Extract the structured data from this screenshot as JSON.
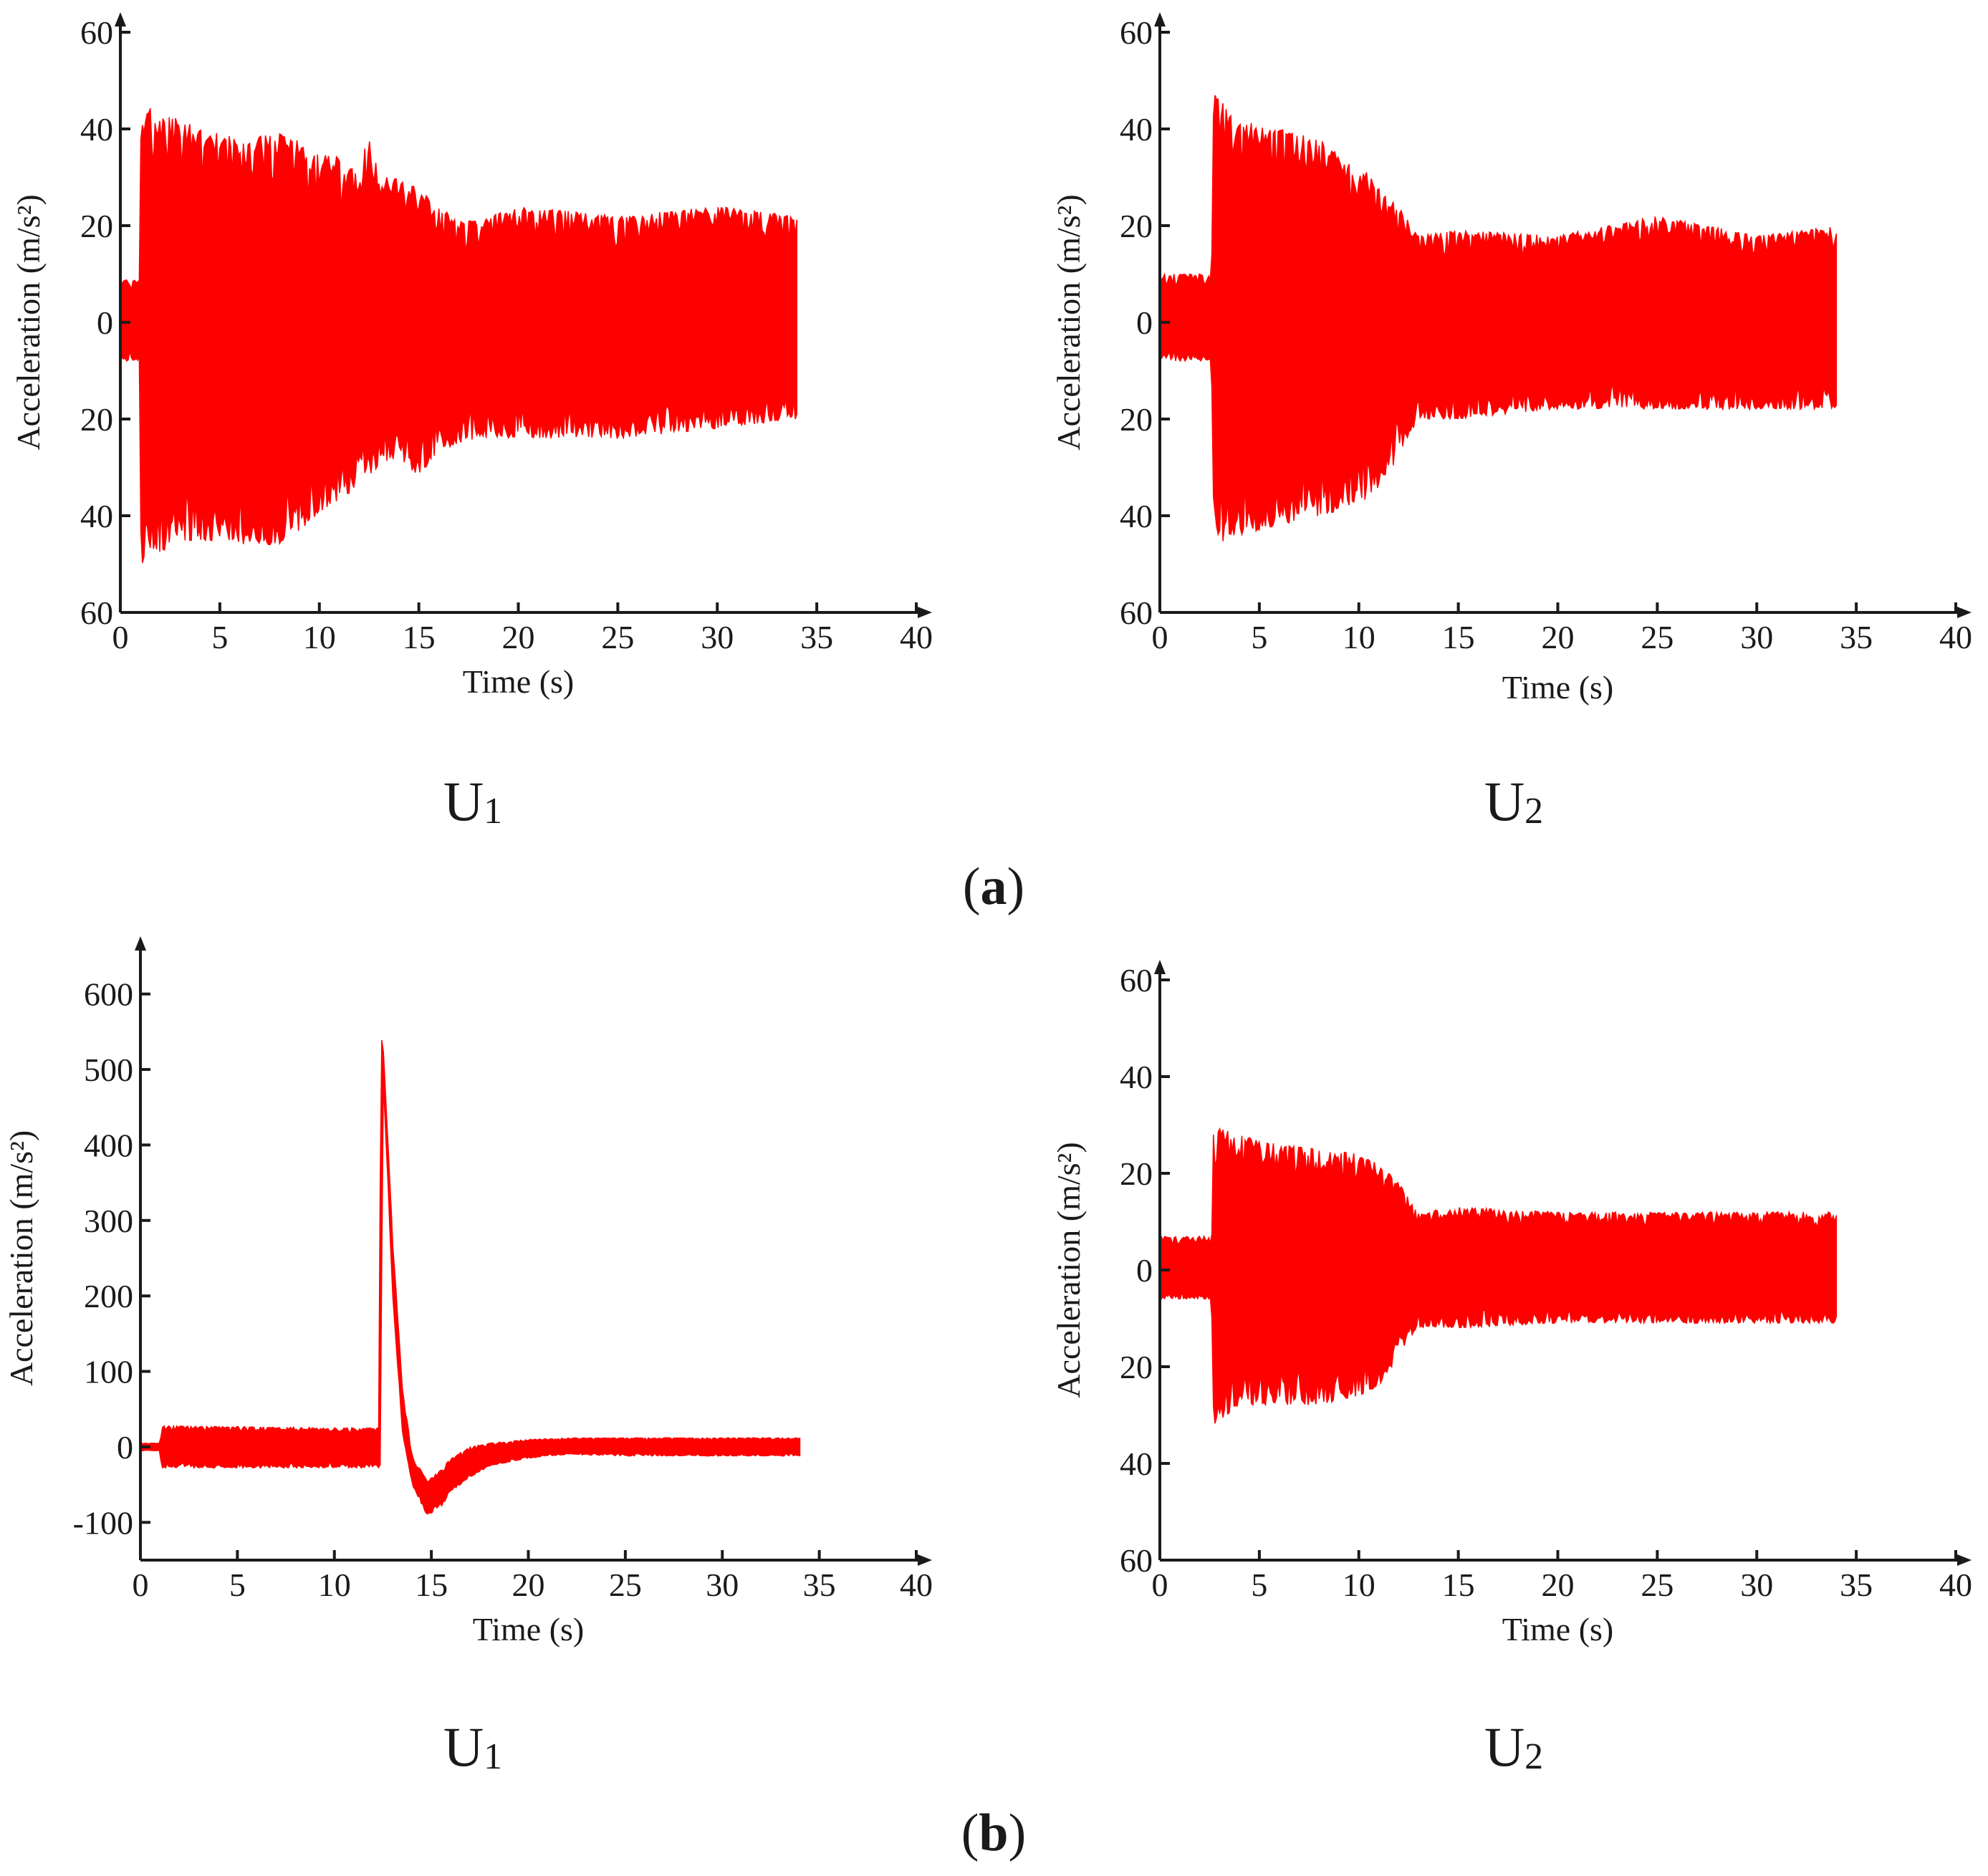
{
  "figure": {
    "labels": [
      {
        "open": "(",
        "letter": "a",
        "close": ")"
      },
      {
        "open": "(",
        "letter": "b",
        "close": ")"
      }
    ],
    "colors": {
      "signal": "#ff0000",
      "axis": "#1a1a1a",
      "background": "#ffffff"
    }
  },
  "chart_data": [
    {
      "id": "a-U1",
      "group": "a",
      "type": "line",
      "title_main": "U",
      "title_sub": "1",
      "xlabel": "Time (s)",
      "ylabel": "Acceleration (m/s²)",
      "xlim": [
        0,
        40
      ],
      "ylim": [
        -60,
        60
      ],
      "x_ticks": [
        0,
        5,
        10,
        15,
        20,
        25,
        30,
        35,
        40
      ],
      "y_ticks": [
        60,
        40,
        20,
        0,
        -20,
        -40,
        -60
      ],
      "y_tick_labels": [
        "60",
        "40",
        "20",
        "0",
        "20",
        "40",
        "60"
      ],
      "series": [
        {
          "name": "acceleration",
          "color": "#ff0000",
          "signal_start": 0,
          "signal_end": 34,
          "envelope_time": [
            0,
            0.99,
            1.0,
            2,
            4,
            6,
            8,
            10,
            12,
            12.5,
            13,
            14,
            15,
            16,
            17,
            18,
            20,
            25,
            30,
            34
          ],
          "envelope_upper": [
            9,
            9,
            45,
            44,
            40,
            38,
            39,
            36,
            32,
            40,
            30,
            30,
            28,
            24,
            21,
            21,
            24,
            22,
            24,
            22
          ],
          "envelope_lower": [
            -8,
            -8,
            -50,
            -48,
            -45,
            -46,
            -46,
            -40,
            -34,
            -32,
            -30,
            -28,
            -32,
            -27,
            -25,
            -24,
            -24,
            -24,
            -22,
            -20
          ]
        }
      ]
    },
    {
      "id": "a-U2",
      "group": "a",
      "type": "line",
      "title_main": "U",
      "title_sub": "2",
      "xlabel": "Time (s)",
      "ylabel": "Acceleration (m/s²)",
      "xlim": [
        0,
        40
      ],
      "ylim": [
        -60,
        60
      ],
      "x_ticks": [
        0,
        5,
        10,
        15,
        20,
        25,
        30,
        35,
        40
      ],
      "y_ticks": [
        60,
        40,
        20,
        0,
        -20,
        -40,
        -60
      ],
      "y_tick_labels": [
        "60",
        "40",
        "20",
        "0",
        "20",
        "40",
        "60"
      ],
      "series": [
        {
          "name": "acceleration",
          "color": "#ff0000",
          "signal_start": 0,
          "signal_end": 34,
          "envelope_time": [
            0,
            2.6,
            2.7,
            4,
            6,
            8,
            10,
            11,
            12,
            13,
            15,
            20,
            25,
            30,
            34
          ],
          "envelope_upper": [
            10,
            10,
            48,
            42,
            40,
            38,
            32,
            30,
            24,
            18,
            19,
            18,
            22,
            18,
            20
          ],
          "envelope_lower": [
            -8,
            -8,
            -46,
            -44,
            -42,
            -40,
            -38,
            -34,
            -28,
            -20,
            -20,
            -18,
            -18,
            -18,
            -18
          ]
        }
      ]
    },
    {
      "id": "b-U1",
      "group": "b",
      "type": "line",
      "title_main": "U",
      "title_sub": "1",
      "xlabel": "Time (s)",
      "ylabel": "Acceleration (m/s²)",
      "xlim": [
        0,
        40
      ],
      "ylim": [
        -150,
        650
      ],
      "x_ticks": [
        0,
        5,
        10,
        15,
        20,
        25,
        30,
        35,
        40
      ],
      "y_ticks": [
        600,
        500,
        400,
        300,
        200,
        100,
        0,
        -100
      ],
      "y_tick_labels": [
        "600",
        "500",
        "400",
        "300",
        "200",
        "100",
        "0",
        "-100"
      ],
      "series": [
        {
          "name": "acceleration",
          "color": "#ff0000",
          "signal_start": 0,
          "signal_end": 34,
          "envelope_time": [
            0,
            1.0,
            1.1,
            12.3,
            12.4,
            12.5,
            13,
            13.5,
            14,
            14.8,
            15.5,
            16,
            17,
            18,
            20,
            22,
            25,
            30,
            34
          ],
          "envelope_upper": [
            5,
            5,
            28,
            25,
            560,
            540,
            280,
            80,
            -10,
            -45,
            -30,
            -15,
            0,
            5,
            10,
            12,
            12,
            12,
            12
          ],
          "envelope_lower": [
            -5,
            -5,
            -28,
            -28,
            -28,
            500,
            200,
            20,
            -50,
            -92,
            -80,
            -60,
            -40,
            -25,
            -15,
            -10,
            -12,
            -12,
            -12
          ]
        }
      ]
    },
    {
      "id": "b-U2",
      "group": "b",
      "type": "line",
      "title_main": "U",
      "title_sub": "2",
      "xlabel": "Time (s)",
      "ylabel": "Acceleration (m/s²)",
      "xlim": [
        0,
        40
      ],
      "ylim": [
        -60,
        60
      ],
      "x_ticks": [
        0,
        5,
        10,
        15,
        20,
        25,
        30,
        35,
        40
      ],
      "y_ticks": [
        60,
        40,
        20,
        0,
        -20,
        -40,
        -60
      ],
      "y_tick_labels": [
        "60",
        "40",
        "20",
        "0",
        "20",
        "40",
        "60"
      ],
      "series": [
        {
          "name": "acceleration",
          "color": "#ff0000",
          "signal_start": 0,
          "signal_end": 34,
          "envelope_time": [
            0,
            2.6,
            2.7,
            4,
            6,
            8,
            10,
            11,
            12,
            13,
            15,
            20,
            25,
            30,
            34
          ],
          "envelope_upper": [
            7,
            7,
            30,
            28,
            26,
            25,
            24,
            22,
            18,
            12,
            13,
            12,
            12,
            12,
            12
          ],
          "envelope_lower": [
            -6,
            -6,
            -32,
            -28,
            -28,
            -28,
            -26,
            -24,
            -18,
            -12,
            -12,
            -11,
            -11,
            -11,
            -11
          ]
        }
      ]
    }
  ]
}
